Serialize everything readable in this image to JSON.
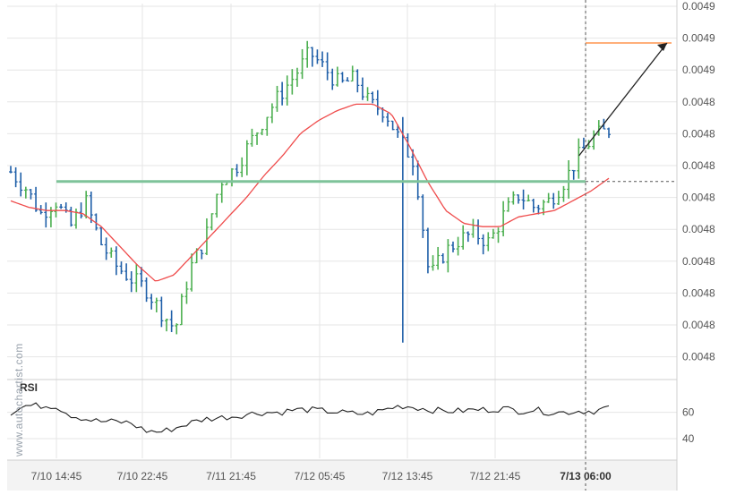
{
  "watermark": "www.autochartist.com",
  "colors": {
    "candle_up": "#4caf50",
    "candle_down": "#1f5fa8",
    "moving_average": "#ef4b4b",
    "support_line": "#7fc39a",
    "forecast_line": "#ff7f2a",
    "arrow": "#222222",
    "rsi_line": "#222222",
    "grid": "#e6e6e6",
    "axis_text": "#555555"
  },
  "chart_data": [
    {
      "type": "candlestick",
      "title": "",
      "x_ticks": [
        "7/10 14:45",
        "7/10 22:45",
        "7/11 21:45",
        "7/12 05:45",
        "7/12 13:45",
        "7/12 21:45",
        "7/13 06:00"
      ],
      "y_ticks": [
        "0.0049",
        "0.0049",
        "0.0049",
        "0.0048",
        "0.0048",
        "0.0048",
        "0.0048",
        "0.0048",
        "0.0048",
        "0.0048",
        "0.0048",
        "0.0048"
      ],
      "highlighted_x_tick": "7/13 06:00",
      "grid": true,
      "ylim": [
        0.004795,
        0.004905
      ],
      "price_series": [
        0.004855,
        0.00485,
        0.004842,
        0.004846,
        0.004838,
        0.004846,
        0.004833,
        0.004826,
        0.004822,
        0.004819,
        0.004812,
        0.004806,
        0.004825,
        0.004834,
        0.004852,
        0.004856,
        0.004864,
        0.004872,
        0.004879,
        0.004885,
        0.004892,
        0.004887,
        0.004882,
        0.004884,
        0.004876,
        0.004874,
        0.004865,
        0.004858,
        0.004822,
        0.00483,
        0.004834,
        0.004836,
        0.004833,
        0.004842,
        0.004848,
        0.004844,
        0.004846,
        0.004852,
        0.00486,
        0.004866,
        0.004868
      ],
      "moving_average": [
        0.004846,
        0.004844,
        0.004843,
        0.004843,
        0.004842,
        0.004838,
        0.004832,
        0.004826,
        0.004821,
        0.004823,
        0.004829,
        0.004835,
        0.004841,
        0.004847,
        0.004854,
        0.00486,
        0.004867,
        0.004871,
        0.004874,
        0.004876,
        0.004876,
        0.004873,
        0.004863,
        0.004852,
        0.004843,
        0.004839,
        0.004838,
        0.004838,
        0.004841,
        0.004842,
        0.004843,
        0.004846,
        0.004849,
        0.004853
      ],
      "support_level": 0.004852,
      "forecast_level": 0.004895,
      "forecast_start_index": 38
    },
    {
      "type": "line",
      "title": "RSI",
      "y_ticks": [
        60,
        40
      ],
      "ylim": [
        25,
        85
      ],
      "rsi_series": [
        60,
        65,
        65,
        65,
        58,
        55,
        53,
        53,
        52,
        46,
        45,
        48,
        52,
        55,
        56,
        57,
        59,
        60,
        60,
        62,
        62,
        61,
        60,
        59,
        59,
        62,
        65,
        64,
        62,
        61,
        61,
        62,
        62,
        63,
        61,
        62,
        60,
        60,
        61,
        61,
        64
      ]
    }
  ]
}
